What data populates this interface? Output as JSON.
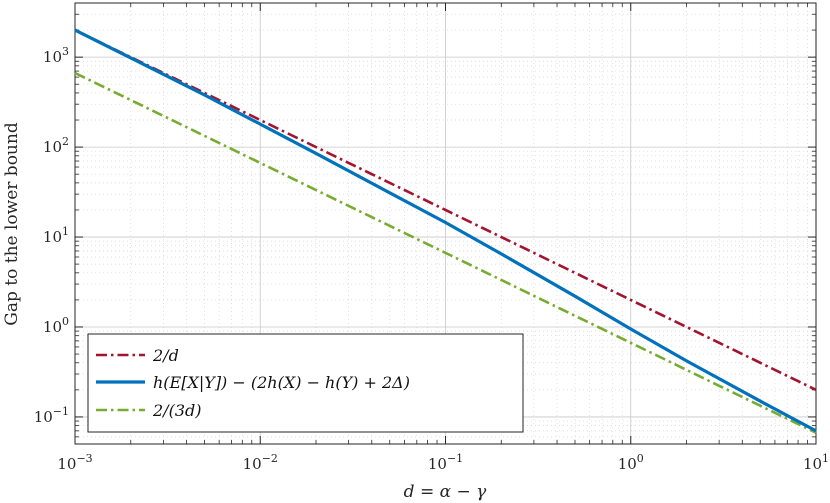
{
  "chart_data": {
    "type": "line",
    "xscale": "log",
    "yscale": "log",
    "xlim": [
      0.001,
      10
    ],
    "ylim": [
      0.05,
      4000
    ],
    "grid": true,
    "legend_position": "bottom-left",
    "xlabel": "d = α − γ",
    "ylabel": "Gap to the lower bound",
    "x_ticks": [
      {
        "base": "10",
        "exp": "−3",
        "value": 0.001
      },
      {
        "base": "10",
        "exp": "−2",
        "value": 0.01
      },
      {
        "base": "10",
        "exp": "−1",
        "value": 0.1
      },
      {
        "base": "10",
        "exp": "0",
        "value": 1
      },
      {
        "base": "10",
        "exp": "1",
        "value": 10
      }
    ],
    "y_ticks": [
      {
        "base": "10",
        "exp": "−1",
        "value": 0.1
      },
      {
        "base": "10",
        "exp": "0",
        "value": 1
      },
      {
        "base": "10",
        "exp": "1",
        "value": 10
      },
      {
        "base": "10",
        "exp": "2",
        "value": 100
      },
      {
        "base": "10",
        "exp": "3",
        "value": 1000
      }
    ],
    "series": [
      {
        "name": "2/d",
        "color": "#a2142f",
        "style": "dash-dot",
        "x": [
          0.001,
          0.003,
          0.01,
          0.03,
          0.1,
          0.3,
          1,
          3,
          10
        ],
        "y": [
          2000,
          666.7,
          200,
          66.7,
          20,
          6.67,
          2,
          0.667,
          0.2
        ]
      },
      {
        "name": "h(E[X|Y]) − (2h(X) − h(Y) + 2Δ)",
        "color": "#0072bd",
        "style": "solid",
        "x": [
          0.001,
          0.002,
          0.005,
          0.01,
          0.02,
          0.05,
          0.1,
          0.2,
          0.5,
          1,
          2,
          5,
          10
        ],
        "y": [
          2000,
          980,
          380,
          180,
          85,
          31,
          14.5,
          6.5,
          2.2,
          0.95,
          0.42,
          0.15,
          0.07
        ]
      },
      {
        "name": "2/(3d)",
        "color": "#77ac30",
        "style": "dash-dot",
        "x": [
          0.001,
          0.003,
          0.01,
          0.03,
          0.1,
          0.3,
          1,
          3,
          10
        ],
        "y": [
          666.7,
          222.2,
          66.7,
          22.2,
          6.67,
          2.22,
          0.667,
          0.222,
          0.0667
        ]
      }
    ]
  }
}
